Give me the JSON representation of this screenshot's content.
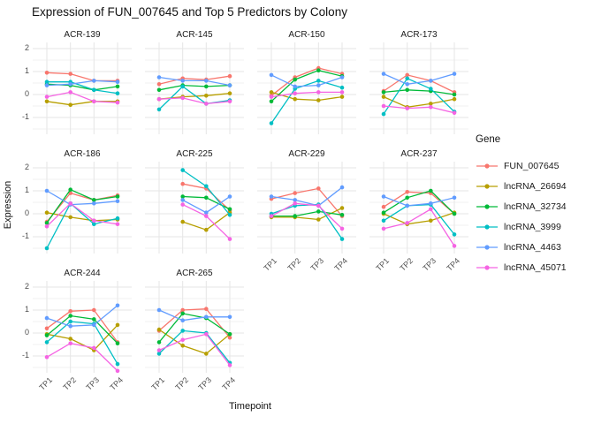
{
  "title": "Expression of FUN_007645 and Top 5 Predictors by Colony",
  "axes": {
    "x_title": "Timepoint",
    "y_title": "Expression",
    "x_ticks": [
      "TP1",
      "TP2",
      "TP3",
      "TP4"
    ],
    "y_ticks": [
      2,
      1,
      0,
      -1
    ]
  },
  "legend": {
    "title": "Gene",
    "entries": [
      {
        "label": "FUN_007645",
        "color": "#F8766D"
      },
      {
        "label": "lncRNA_26694",
        "color": "#B79F00"
      },
      {
        "label": "lncRNA_32734",
        "color": "#00BA38"
      },
      {
        "label": "lncRNA_3999",
        "color": "#00BFC4"
      },
      {
        "label": "lncRNA_4463",
        "color": "#619CFF"
      },
      {
        "label": "lncRNA_45071",
        "color": "#F564E3"
      }
    ]
  },
  "chart_data": {
    "type": "line",
    "x": [
      "TP1",
      "TP2",
      "TP3",
      "TP4"
    ],
    "xlabel": "Timepoint",
    "ylabel": "Expression",
    "ylim": [
      -1.75,
      2.1
    ],
    "y_major_gridlines": [
      2,
      1,
      0,
      -1
    ],
    "y_minor_gridlines": [
      1.5,
      0.5,
      -0.5,
      -1.5
    ],
    "grid": true,
    "legend_position": "right",
    "legend_title": "Gene",
    "series_order": [
      "FUN_007645",
      "lncRNA_26694",
      "lncRNA_32734",
      "lncRNA_3999",
      "lncRNA_4463",
      "lncRNA_45071"
    ],
    "series_colors": {
      "FUN_007645": "#F8766D",
      "lncRNA_26694": "#B79F00",
      "lncRNA_32734": "#00BA38",
      "lncRNA_3999": "#00BFC4",
      "lncRNA_4463": "#619CFF",
      "lncRNA_45071": "#F564E3"
    },
    "facets": [
      {
        "name": "ACR-139",
        "series": {
          "FUN_007645": [
            0.95,
            0.9,
            0.6,
            0.6
          ],
          "lncRNA_26694": [
            -0.3,
            -0.45,
            -0.3,
            -0.3
          ],
          "lncRNA_32734": [
            0.45,
            0.4,
            0.2,
            0.35
          ],
          "lncRNA_3999": [
            0.55,
            0.55,
            0.2,
            0.05
          ],
          "lncRNA_4463": [
            0.4,
            0.45,
            0.6,
            0.55
          ],
          "lncRNA_45071": [
            -0.1,
            0.1,
            -0.3,
            -0.35
          ]
        }
      },
      {
        "name": "ACR-145",
        "series": {
          "FUN_007645": [
            0.45,
            0.7,
            0.65,
            0.8
          ],
          "lncRNA_26694": [
            -0.2,
            -0.1,
            -0.05,
            0.05
          ],
          "lncRNA_32734": [
            0.2,
            0.4,
            0.35,
            0.4
          ],
          "lncRNA_3999": [
            -0.65,
            0.35,
            -0.4,
            -0.25
          ],
          "lncRNA_4463": [
            0.75,
            0.6,
            0.6,
            0.4
          ],
          "lncRNA_45071": [
            -0.2,
            -0.15,
            -0.4,
            -0.3
          ]
        }
      },
      {
        "name": "ACR-150",
        "series": {
          "FUN_007645": [
            -0.05,
            0.75,
            1.15,
            0.9
          ],
          "lncRNA_26694": [
            0.1,
            -0.2,
            -0.25,
            -0.1
          ],
          "lncRNA_32734": [
            -0.3,
            0.65,
            1.05,
            0.8
          ],
          "lncRNA_3999": [
            -1.25,
            0.25,
            0.6,
            0.3
          ],
          "lncRNA_4463": [
            0.85,
            0.35,
            0.4,
            0.75
          ],
          "lncRNA_45071": [
            -0.1,
            0.05,
            0.1,
            0.1
          ]
        }
      },
      {
        "name": "ACR-173",
        "series": {
          "FUN_007645": [
            0.15,
            0.85,
            0.6,
            0.1
          ],
          "lncRNA_26694": [
            -0.1,
            -0.55,
            -0.4,
            -0.2
          ],
          "lncRNA_32734": [
            0.1,
            0.2,
            0.15,
            0.0
          ],
          "lncRNA_3999": [
            -0.85,
            0.7,
            0.25,
            -0.75
          ],
          "lncRNA_4463": [
            0.9,
            0.45,
            0.6,
            0.9
          ],
          "lncRNA_45071": [
            -0.5,
            -0.6,
            -0.55,
            -0.8
          ]
        }
      },
      {
        "name": "ACR-186",
        "series": {
          "FUN_007645": [
            -0.35,
            0.9,
            0.6,
            0.8
          ],
          "lncRNA_26694": [
            0.05,
            -0.15,
            -0.3,
            -0.25
          ],
          "lncRNA_32734": [
            -0.4,
            1.05,
            0.6,
            0.75
          ],
          "lncRNA_3999": [
            -1.5,
            0.45,
            -0.45,
            -0.2
          ],
          "lncRNA_4463": [
            1.0,
            0.4,
            0.45,
            0.55
          ],
          "lncRNA_45071": [
            -0.55,
            0.45,
            -0.3,
            -0.45
          ]
        }
      },
      {
        "name": "ACR-225",
        "series": {
          "FUN_007645": [
            null,
            1.3,
            1.1,
            0.15
          ],
          "lncRNA_26694": [
            null,
            -0.35,
            -0.7,
            0.05
          ],
          "lncRNA_32734": [
            null,
            0.75,
            0.7,
            0.2
          ],
          "lncRNA_3999": [
            null,
            1.9,
            1.2,
            -0.05
          ],
          "lncRNA_4463": [
            null,
            0.6,
            0.05,
            0.75
          ],
          "lncRNA_45071": [
            null,
            0.4,
            -0.1,
            -1.1
          ]
        }
      },
      {
        "name": "ACR-229",
        "series": {
          "FUN_007645": [
            0.65,
            0.9,
            1.1,
            -0.1
          ],
          "lncRNA_26694": [
            -0.15,
            -0.15,
            -0.25,
            0.25
          ],
          "lncRNA_32734": [
            -0.1,
            -0.1,
            0.1,
            -0.05
          ],
          "lncRNA_3999": [
            0.0,
            0.35,
            0.4,
            -1.1
          ],
          "lncRNA_4463": [
            0.75,
            0.6,
            0.35,
            1.15
          ],
          "lncRNA_45071": [
            -0.1,
            0.45,
            0.35,
            -0.65
          ]
        }
      },
      {
        "name": "ACR-237",
        "series": {
          "FUN_007645": [
            0.3,
            0.95,
            0.9,
            0.0
          ],
          "lncRNA_26694": [
            0.0,
            -0.45,
            -0.3,
            0.05
          ],
          "lncRNA_32734": [
            0.05,
            0.7,
            1.0,
            0.0
          ],
          "lncRNA_3999": [
            -0.3,
            0.35,
            0.4,
            -0.9
          ],
          "lncRNA_4463": [
            0.75,
            0.35,
            0.45,
            0.7
          ],
          "lncRNA_45071": [
            -0.65,
            -0.4,
            0.2,
            -1.4
          ]
        }
      },
      {
        "name": "ACR-244",
        "series": {
          "FUN_007645": [
            0.2,
            0.95,
            1.0,
            -0.4
          ],
          "lncRNA_26694": [
            -0.05,
            -0.25,
            -0.75,
            0.35
          ],
          "lncRNA_32734": [
            -0.1,
            0.75,
            0.6,
            -0.45
          ],
          "lncRNA_3999": [
            -0.4,
            0.5,
            0.4,
            -1.35
          ],
          "lncRNA_4463": [
            0.65,
            0.3,
            0.35,
            1.2
          ],
          "lncRNA_45071": [
            -1.05,
            -0.45,
            -0.65,
            -1.65
          ]
        }
      },
      {
        "name": "ACR-265",
        "series": {
          "FUN_007645": [
            0.1,
            1.0,
            1.05,
            -0.2
          ],
          "lncRNA_26694": [
            0.15,
            -0.55,
            -0.9,
            -0.05
          ],
          "lncRNA_32734": [
            -0.4,
            0.85,
            0.65,
            -0.05
          ],
          "lncRNA_3999": [
            -0.9,
            0.1,
            0.0,
            -1.3
          ],
          "lncRNA_4463": [
            1.0,
            0.55,
            0.7,
            0.7
          ],
          "lncRNA_45071": [
            -0.75,
            -0.3,
            -0.05,
            -1.4
          ]
        }
      }
    ]
  },
  "style": {
    "major_grid_color": "#e5e5e5",
    "minor_grid_color": "#f2f2f2",
    "tick_label_color": "#4d4d4d",
    "text_color": "#1a1a1a",
    "background": "#ffffff"
  }
}
